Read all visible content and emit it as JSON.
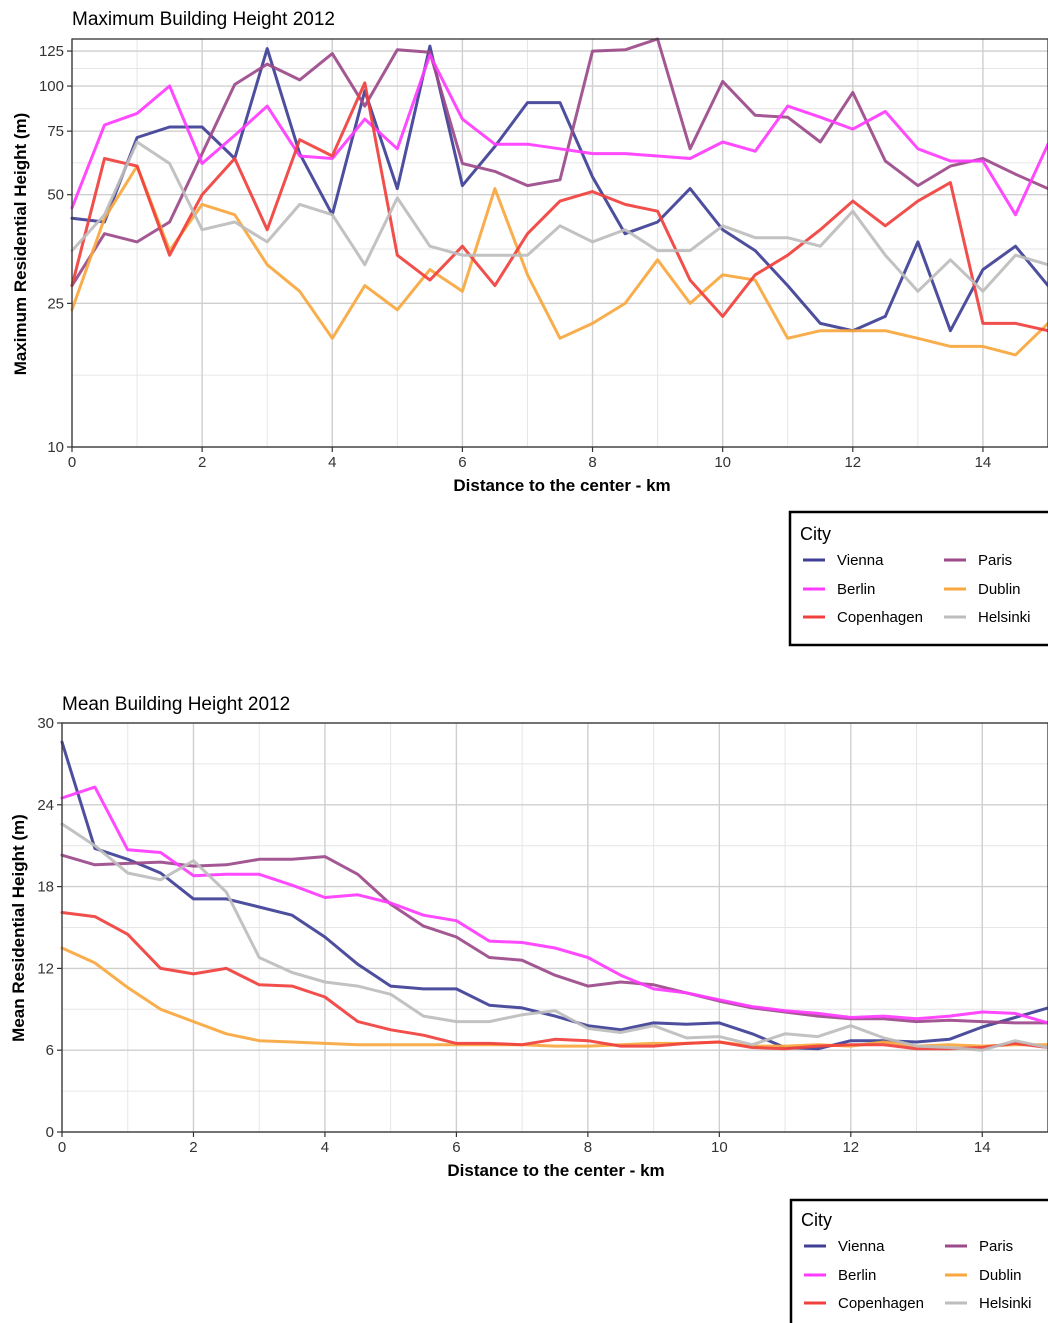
{
  "chart_data": [
    {
      "type": "line",
      "title": "Maximum Building Height 2012",
      "xlabel": "Distance to the center - km",
      "ylabel": "Maximum Residential Height (m)",
      "y_scale": "log",
      "xlim": [
        0,
        15
      ],
      "ylim": [
        10,
        135
      ],
      "x_ticks": [
        "0",
        "2",
        "4",
        "6",
        "8",
        "10",
        "12",
        "14"
      ],
      "y_ticks": [
        "10",
        "25",
        "50",
        "75",
        "100",
        "125"
      ],
      "legend_title": "City",
      "legend_position": "bottom-right",
      "x": [
        0,
        0.5,
        1,
        1.5,
        2,
        2.5,
        3,
        3.5,
        4,
        4.5,
        5,
        5.5,
        6,
        6.5,
        7,
        7.5,
        8,
        8.5,
        9,
        9.5,
        10,
        10.5,
        11,
        11.5,
        12,
        12.5,
        13,
        13.5,
        14,
        14.5,
        15
      ],
      "series": [
        {
          "name": "Vienna",
          "color": "#3f3f96",
          "values": [
            43,
            42,
            72,
            77,
            77,
            63,
            127,
            65,
            44,
            97,
            52,
            129,
            53,
            68,
            90,
            90,
            56,
            39,
            42,
            52,
            40,
            35,
            28,
            22,
            21,
            23,
            37,
            21,
            31,
            36,
            28
          ]
        },
        {
          "name": "Paris",
          "color": "#9c4a8a",
          "values": [
            28,
            39,
            37,
            42,
            65,
            101,
            115,
            104,
            123,
            88,
            126,
            124,
            61,
            58,
            53,
            55,
            125,
            126,
            135,
            67,
            103,
            83,
            82,
            70,
            96,
            62,
            53,
            60,
            63,
            57,
            52
          ]
        },
        {
          "name": "Berlin",
          "color": "#ff3bff",
          "values": [
            46,
            78,
            84,
            100,
            61,
            73,
            88,
            64,
            63,
            81,
            67,
            122,
            81,
            69,
            69,
            67,
            65,
            65,
            64,
            63,
            70,
            66,
            88,
            82,
            76,
            85,
            67,
            62,
            62,
            44,
            69
          ]
        },
        {
          "name": "Dublin",
          "color": "#f8a73e",
          "values": [
            24,
            43,
            60,
            35,
            47,
            44,
            32,
            27,
            20,
            28,
            24,
            31,
            27,
            52,
            30,
            20,
            22,
            25,
            33,
            25,
            30,
            29,
            20,
            21,
            21,
            21,
            20,
            19,
            19,
            18,
            22
          ]
        },
        {
          "name": "Copenhagen",
          "color": "#f0403d",
          "values": [
            28,
            63,
            60,
            34,
            50,
            63,
            40,
            71,
            64,
            102,
            34,
            29,
            36,
            28,
            39,
            48,
            51,
            47,
            45,
            29,
            23,
            30,
            34,
            40,
            48,
            41,
            48,
            54,
            22,
            22,
            21
          ]
        },
        {
          "name": "Helsinki",
          "color": "#bdbdbd",
          "values": [
            35,
            44,
            70,
            61,
            40,
            42,
            37,
            47,
            44,
            32,
            49,
            36,
            34,
            34,
            34,
            41,
            37,
            40,
            35,
            35,
            41,
            38,
            38,
            36,
            45,
            34,
            27,
            33,
            27,
            34,
            32
          ]
        }
      ]
    },
    {
      "type": "line",
      "title": "Mean Building Height 2012",
      "xlabel": "Distance to the center - km",
      "ylabel": "Mean Residential Height (m)",
      "xlim": [
        0,
        15
      ],
      "ylim": [
        0,
        30
      ],
      "x_ticks": [
        "0",
        "2",
        "4",
        "6",
        "8",
        "10",
        "12",
        "14"
      ],
      "y_ticks": [
        "0",
        "6",
        "12",
        "18",
        "24",
        "30"
      ],
      "legend_title": "City",
      "legend_position": "bottom-right",
      "x": [
        0,
        0.5,
        1,
        1.5,
        2,
        2.5,
        3,
        3.5,
        4,
        4.5,
        5,
        5.5,
        6,
        6.5,
        7,
        7.5,
        8,
        8.5,
        9,
        9.5,
        10,
        10.5,
        11,
        11.5,
        12,
        12.5,
        13,
        13.5,
        14,
        14.5,
        15
      ],
      "series": [
        {
          "name": "Vienna",
          "color": "#3f3f96",
          "values": [
            28.6,
            20.8,
            20.0,
            19.0,
            17.1,
            17.1,
            16.5,
            15.9,
            14.3,
            12.3,
            10.7,
            10.5,
            10.5,
            9.3,
            9.1,
            8.5,
            7.8,
            7.5,
            8.0,
            7.9,
            8.0,
            7.2,
            6.2,
            6.1,
            6.7,
            6.7,
            6.6,
            6.8,
            7.7,
            8.4,
            9.1
          ]
        },
        {
          "name": "Paris",
          "color": "#9c4a8a",
          "values": [
            20.3,
            19.6,
            19.7,
            19.8,
            19.5,
            19.6,
            20.0,
            20.0,
            20.2,
            18.9,
            16.7,
            15.1,
            14.3,
            12.8,
            12.6,
            11.5,
            10.7,
            11.0,
            10.8,
            10.2,
            9.6,
            9.1,
            8.8,
            8.5,
            8.3,
            8.3,
            8.1,
            8.2,
            8.1,
            8.0,
            8.0
          ]
        },
        {
          "name": "Berlin",
          "color": "#ff3bff",
          "values": [
            24.5,
            25.3,
            20.7,
            20.5,
            18.8,
            18.9,
            18.9,
            18.1,
            17.2,
            17.4,
            16.8,
            15.9,
            15.5,
            14.0,
            13.9,
            13.5,
            12.8,
            11.5,
            10.5,
            10.2,
            9.7,
            9.2,
            8.9,
            8.7,
            8.4,
            8.5,
            8.3,
            8.5,
            8.8,
            8.7,
            8.0
          ]
        },
        {
          "name": "Dublin",
          "color": "#f8a73e",
          "values": [
            13.5,
            12.4,
            10.6,
            9.0,
            8.1,
            7.2,
            6.7,
            6.6,
            6.5,
            6.4,
            6.4,
            6.4,
            6.4,
            6.4,
            6.4,
            6.3,
            6.3,
            6.4,
            6.5,
            6.5,
            6.6,
            6.3,
            6.3,
            6.4,
            6.3,
            6.6,
            6.3,
            6.4,
            6.3,
            6.4,
            6.4
          ]
        },
        {
          "name": "Copenhagen",
          "color": "#f0403d",
          "values": [
            16.1,
            15.8,
            14.5,
            12.0,
            11.6,
            12.0,
            10.8,
            10.7,
            9.9,
            8.1,
            7.5,
            7.1,
            6.5,
            6.5,
            6.4,
            6.8,
            6.7,
            6.3,
            6.3,
            6.5,
            6.6,
            6.2,
            6.1,
            6.3,
            6.4,
            6.4,
            6.1,
            6.1,
            6.2,
            6.5,
            6.2
          ]
        },
        {
          "name": "Helsinki",
          "color": "#bdbdbd",
          "values": [
            22.6,
            21.0,
            19.0,
            18.5,
            19.9,
            17.6,
            12.8,
            11.7,
            11.0,
            10.7,
            10.1,
            8.5,
            8.1,
            8.1,
            8.6,
            8.9,
            7.6,
            7.3,
            7.8,
            6.9,
            7.0,
            6.4,
            7.2,
            7.0,
            7.8,
            6.9,
            6.3,
            6.2,
            6.0,
            6.7,
            6.2
          ]
        }
      ]
    }
  ]
}
